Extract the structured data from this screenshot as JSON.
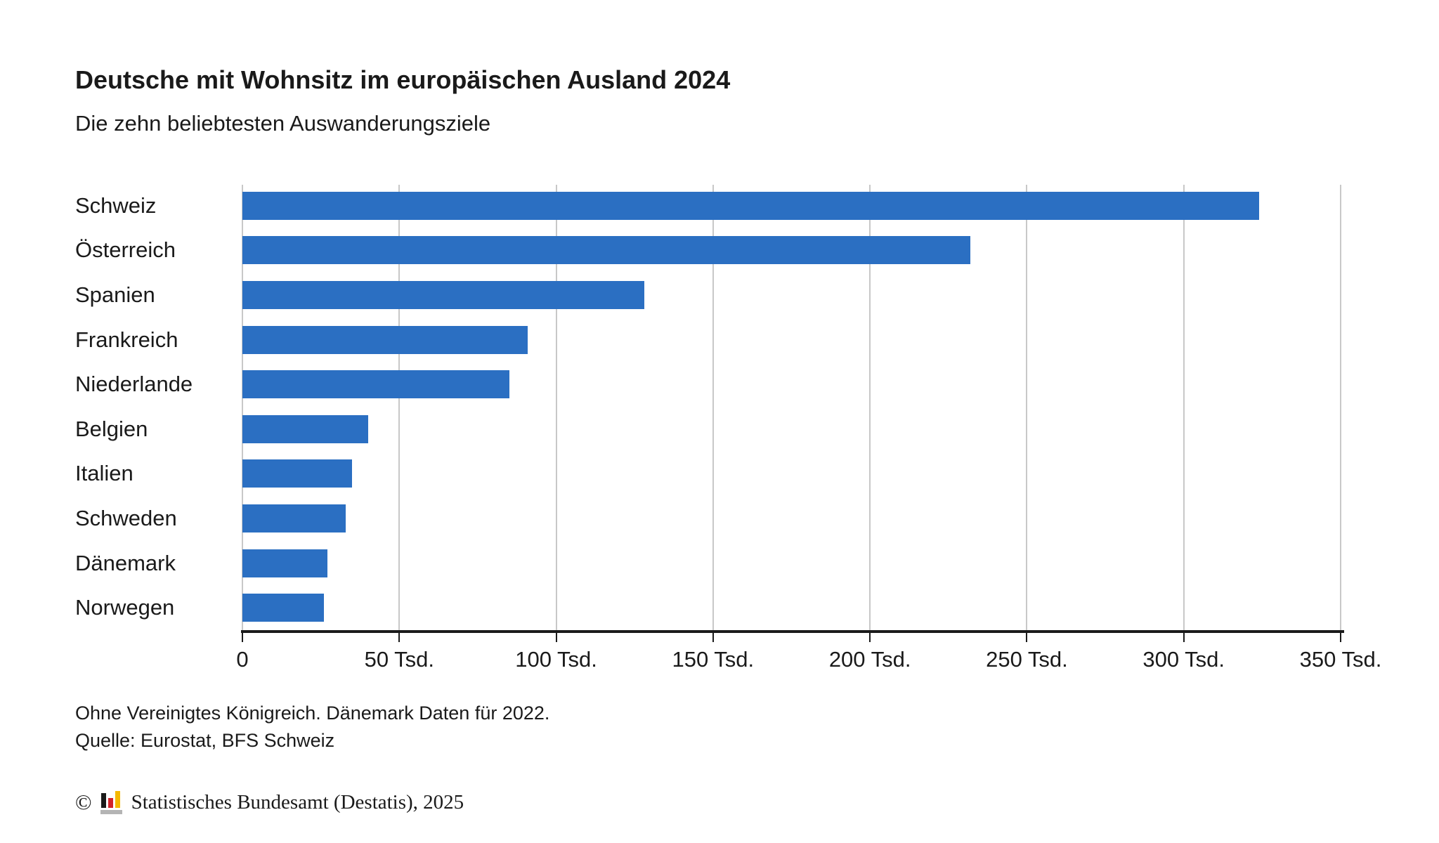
{
  "header": {
    "title": "Deutsche mit Wohnsitz im europäischen Ausland 2024",
    "subtitle": "Die zehn beliebtesten Auswanderungsziele"
  },
  "chart_data": {
    "type": "bar",
    "orientation": "horizontal",
    "title": "Deutsche mit Wohnsitz im europäischen Ausland 2024",
    "subtitle": "Die zehn beliebtesten Auswanderungsziele",
    "categories": [
      "Schweiz",
      "Österreich",
      "Spanien",
      "Frankreich",
      "Niederlande",
      "Belgien",
      "Italien",
      "Schweden",
      "Dänemark",
      "Norwegen"
    ],
    "values": [
      324,
      232,
      128,
      91,
      85,
      40,
      35,
      33,
      27,
      26
    ],
    "unit": "Tsd.",
    "xlabel": "",
    "ylabel": "",
    "xlim": [
      0,
      350
    ],
    "x_tick_values": [
      0,
      50,
      100,
      150,
      200,
      250,
      300,
      350
    ],
    "x_tick_labels": [
      "0",
      "50 Tsd.",
      "100 Tsd.",
      "150 Tsd.",
      "200 Tsd.",
      "250 Tsd.",
      "300 Tsd.",
      "350 Tsd."
    ],
    "grid": "vertical",
    "legend": "none",
    "bar_color": "#2b6fc2",
    "gridline_color": "#c8c8c8",
    "axis_color": "#1a1a1a",
    "text_color": "#1a1a1a"
  },
  "footnotes": [
    "Ohne Vereinigtes Königreich. Dänemark Daten für 2022.",
    "Quelle: Eurostat, BFS Schweiz"
  ],
  "attribution": {
    "copyright": "©",
    "text": "Statistisches Bundesamt (Destatis), 2025",
    "logo": {
      "icon": "destatis-bar-chart-logo",
      "bar_black": "#1a1a1a",
      "bar_red": "#d2232a",
      "bar_gold": "#f5b800",
      "base_gray": "#b4b4b4"
    }
  }
}
